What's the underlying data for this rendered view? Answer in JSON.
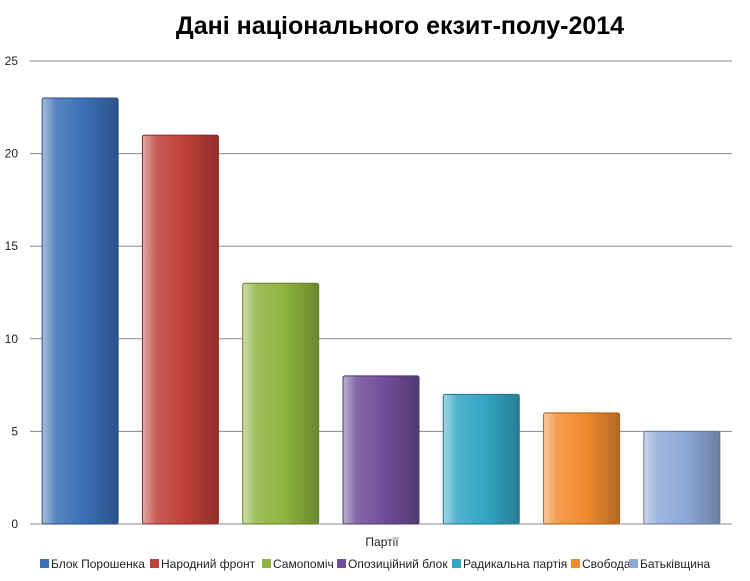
{
  "chart_data": {
    "type": "bar",
    "title": "Дані національного екзит-полу-2014",
    "xlabel": "Партії",
    "ylabel": "",
    "ylim": [
      0,
      25
    ],
    "yticks": [
      0,
      5,
      10,
      15,
      20,
      25
    ],
    "grid": true,
    "legend_position": "bottom",
    "categories": [
      "Блок Порошенка",
      "Народний фронт",
      "Самопоміч",
      "Опозиційний блок",
      "Радикальна партія",
      "Свобода",
      "Батьківщина"
    ],
    "values": [
      23,
      21,
      13,
      8,
      7,
      6,
      5
    ],
    "colors": [
      "#3b6fb6",
      "#c0403a",
      "#8db43e",
      "#6f4d98",
      "#32a6c4",
      "#f08a2e",
      "#8ea9d8"
    ]
  }
}
